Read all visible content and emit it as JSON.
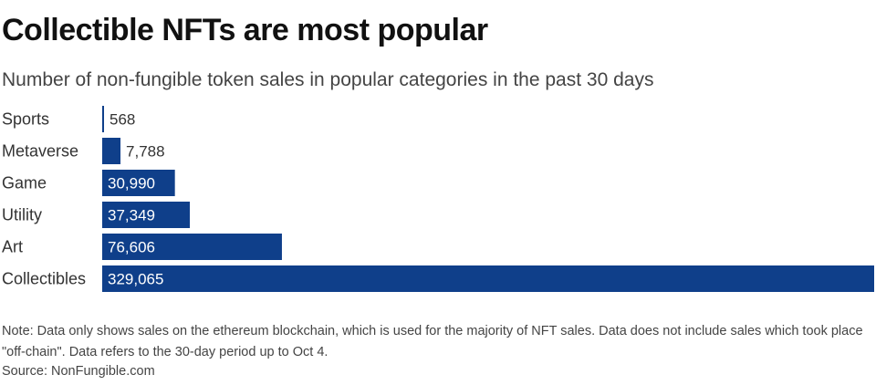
{
  "title": "Collectible NFTs are most popular",
  "subtitle": "Number of non-fungible token sales in popular categories in the past 30 days",
  "note": "Note: Data only shows sales on the ethereum blockchain, which is used for the majority of NFT sales. Data does not include sales which took place \"off-chain\". Data refers to the 30-day period up to Oct 4.",
  "source": "Source: NonFungible.com",
  "colors": {
    "bar": "#0f3f8a",
    "label_inside": "#ffffff",
    "label_outside": "#333333"
  },
  "chart_data": {
    "type": "bar",
    "orientation": "horizontal",
    "categories": [
      "Sports",
      "Metaverse",
      "Game",
      "Utility",
      "Art",
      "Collectibles"
    ],
    "values": [
      568,
      7788,
      30990,
      37349,
      76606,
      329065
    ],
    "value_labels": [
      "568",
      "7,788",
      "30,990",
      "37,349",
      "76,606",
      "329,065"
    ],
    "title": "Collectible NFTs are most popular",
    "xlabel": "",
    "ylabel": "",
    "grid": false,
    "legend": "none"
  }
}
